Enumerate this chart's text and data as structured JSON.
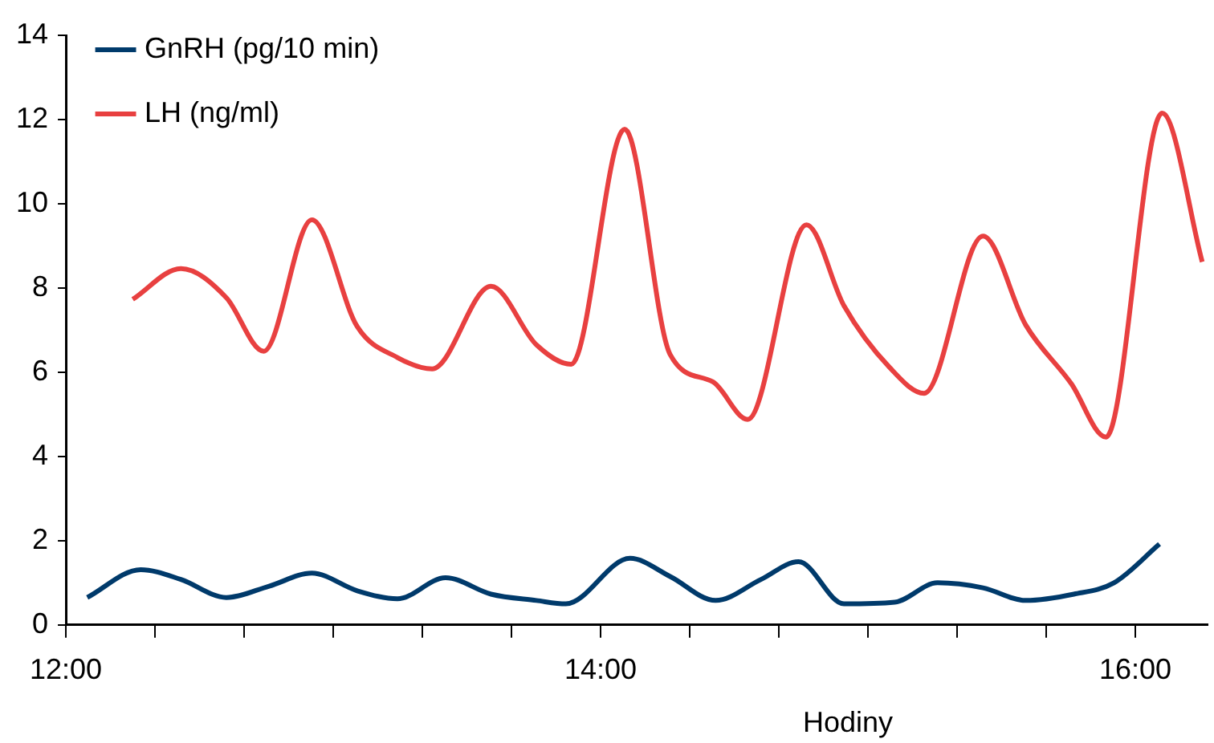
{
  "chart_data": {
    "type": "line",
    "xlabel": "Hodiny",
    "xlim": [
      12,
      16.27
    ],
    "xticks": [
      {
        "value": 12,
        "label": "12:00"
      },
      {
        "value": 12.3333,
        "label": null
      },
      {
        "value": 12.6667,
        "label": null
      },
      {
        "value": 13,
        "label": null
      },
      {
        "value": 13.3333,
        "label": null
      },
      {
        "value": 13.6667,
        "label": null
      },
      {
        "value": 14,
        "label": "14:00"
      },
      {
        "value": 14.3333,
        "label": null
      },
      {
        "value": 14.6667,
        "label": null
      },
      {
        "value": 15,
        "label": null
      },
      {
        "value": 15.3333,
        "label": null
      },
      {
        "value": 15.6667,
        "label": null
      },
      {
        "value": 16,
        "label": "16:00"
      }
    ],
    "ylim": [
      0,
      14
    ],
    "yticks": [
      0,
      2,
      4,
      6,
      8,
      10,
      12,
      14
    ],
    "grid": false,
    "legend": "top left",
    "marker": "none",
    "line_style": "solid",
    "series": [
      {
        "name": "GnRH (pg/10 min)",
        "color": "#003a6b",
        "x": [
          12.08,
          12.28,
          12.43,
          12.6,
          12.76,
          12.92,
          13.09,
          13.24,
          13.42,
          13.59,
          13.76,
          13.87,
          14.11,
          14.26,
          14.43,
          14.6,
          14.74,
          14.91,
          15.1,
          15.26,
          15.43,
          15.59,
          15.77,
          15.92,
          16.09
        ],
        "values": [
          0.65,
          1.31,
          1.08,
          0.65,
          0.92,
          1.23,
          0.81,
          0.62,
          1.12,
          0.73,
          0.58,
          0.5,
          1.58,
          1.15,
          0.58,
          1.08,
          1.5,
          0.5,
          0.54,
          1.0,
          0.88,
          0.58,
          0.73,
          1.0,
          1.92
        ]
      },
      {
        "name": "LH (ng/ml)",
        "color": "#e84040",
        "x": [
          12.25,
          12.43,
          12.6,
          12.74,
          12.92,
          13.09,
          13.24,
          13.37,
          13.59,
          13.76,
          13.89,
          14.09,
          14.26,
          14.42,
          14.55,
          14.77,
          14.91,
          15.08,
          15.21,
          15.43,
          15.59,
          15.76,
          15.89,
          16.1,
          16.25
        ],
        "values": [
          7.73,
          8.46,
          7.77,
          6.5,
          9.62,
          7.08,
          6.35,
          6.08,
          8.04,
          6.65,
          6.19,
          11.77,
          6.42,
          5.77,
          4.88,
          9.5,
          7.58,
          6.12,
          5.5,
          9.23,
          7.12,
          5.73,
          4.46,
          12.15,
          8.62
        ]
      }
    ]
  }
}
